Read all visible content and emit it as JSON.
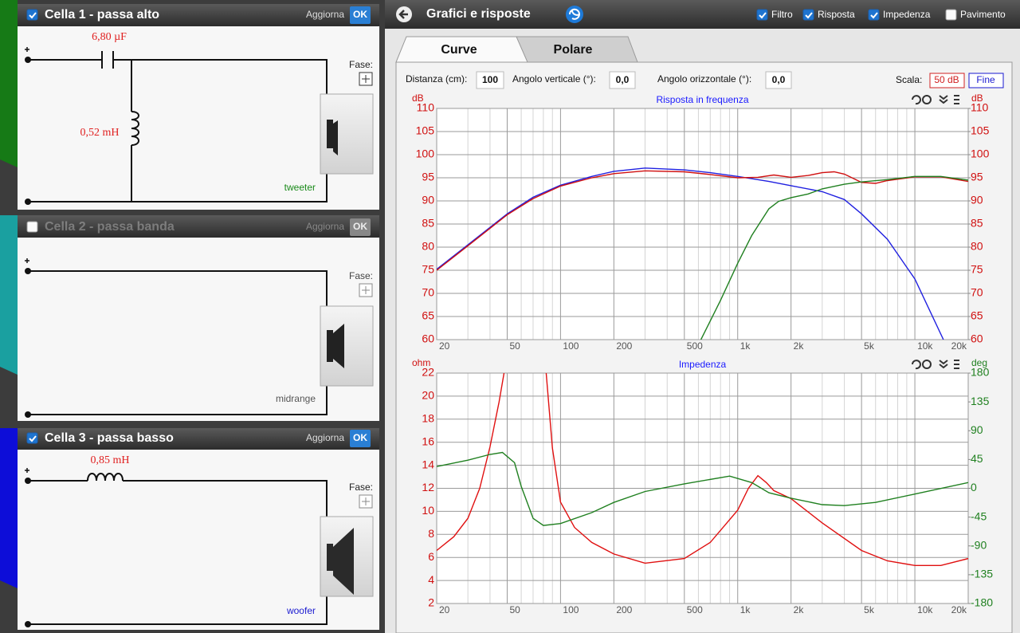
{
  "left_panel": {
    "cells": [
      {
        "title": "Cella 1 - passa alto",
        "checked": true,
        "update": "Aggiorna",
        "ok": "OK",
        "components": [
          "6,80 µF",
          "0,52 mH"
        ],
        "phase": "Fase:",
        "driver": "tweeter"
      },
      {
        "title": "Cella 2 - passa banda",
        "checked": false,
        "update": "Aggiorna",
        "ok": "OK",
        "phase": "Fase:",
        "driver": "midrange"
      },
      {
        "title": "Cella 3 - passa basso",
        "checked": true,
        "update": "Aggiorna",
        "ok": "OK",
        "components": [
          "0,85 mH"
        ],
        "phase": "Fase:",
        "driver": "woofer"
      }
    ]
  },
  "header": {
    "title": "Grafici e risposte",
    "toggles": [
      {
        "label": "Filtro",
        "checked": true
      },
      {
        "label": "Risposta",
        "checked": true
      },
      {
        "label": "Impedenza",
        "checked": true
      },
      {
        "label": "Pavimento",
        "checked": false
      }
    ]
  },
  "tabs": [
    "Curve",
    "Polare"
  ],
  "controls": {
    "distance_label": "Distanza (cm):",
    "distance": "100",
    "vertical_label": "Angolo verticale (°):",
    "vertical": "0,0",
    "horizontal_label": "Angolo orizzontale (°):",
    "horizontal": "0,0",
    "scale_label": "Scala:",
    "scale_db": "50 dB",
    "scale_fine": "Fine"
  },
  "chart_data": [
    {
      "type": "line",
      "title": "Risposta in frequenza",
      "title_color": "#1a1aff",
      "log_x": true,
      "ylabel": "dB",
      "y2label": "dB",
      "ytick_color": "#d01010",
      "y2tick_color": "#d01010",
      "xlim": [
        20,
        20000
      ],
      "xticks": [
        20,
        50,
        100,
        200,
        500,
        {
          "value": 1000,
          "label": "1k"
        },
        {
          "value": 2000,
          "label": "2k"
        },
        {
          "value": 5000,
          "label": "5k"
        },
        {
          "value": 10000,
          "label": "10k"
        },
        {
          "value": 20000,
          "label": "20k"
        }
      ],
      "xticks_minor": [
        30,
        40,
        60,
        70,
        80,
        90,
        300,
        400,
        600,
        700,
        800,
        900,
        3000,
        4000,
        6000,
        7000,
        8000,
        9000
      ],
      "ylim": [
        60,
        110
      ],
      "yticks": [
        60,
        65,
        70,
        75,
        80,
        85,
        90,
        95,
        100,
        105,
        110
      ],
      "y2lim": [
        60,
        110
      ],
      "y2ticks": [
        60,
        65,
        70,
        75,
        80,
        85,
        90,
        95,
        100,
        105,
        110
      ],
      "series": [
        {
          "color": "#2020e0",
          "x": [
            20,
            30,
            50,
            70,
            100,
            150,
            200,
            300,
            500,
            700,
            1000,
            1500,
            2000,
            3000,
            4000,
            5000,
            7000,
            10000,
            14500
          ],
          "values": [
            75.2,
            80.5,
            87.2,
            90.8,
            93.4,
            95.3,
            96.4,
            97.1,
            96.7,
            96.1,
            95.3,
            94.2,
            93.3,
            92,
            90.3,
            87.2,
            81.7,
            73.1,
            60
          ]
        },
        {
          "color": "#d01010",
          "x": [
            20,
            30,
            50,
            70,
            100,
            150,
            200,
            300,
            500,
            700,
            1000,
            1300,
            1600,
            2000,
            2500,
            3000,
            3500,
            4000,
            5000,
            6000,
            7000,
            10000,
            14000,
            20000
          ],
          "values": [
            75,
            80.3,
            87,
            90.5,
            93.2,
            95,
            95.9,
            96.5,
            96.3,
            95.7,
            95,
            95.1,
            95.6,
            95.1,
            95.5,
            96.1,
            96.3,
            95.8,
            94,
            93.8,
            94.4,
            95.2,
            95.2,
            94.2
          ]
        },
        {
          "color": "#208020",
          "x": [
            620,
            800,
            1000,
            1200,
            1500,
            1700,
            2000,
            2500,
            3000,
            4000,
            5000,
            7000,
            10000,
            14000,
            20000
          ],
          "values": [
            60,
            68.5,
            76.5,
            82.5,
            88.3,
            89.9,
            90.7,
            91.5,
            92.6,
            93.6,
            94.1,
            94.6,
            95.3,
            95.3,
            94.5
          ]
        }
      ]
    },
    {
      "type": "line",
      "title": "Impedenza",
      "title_color": "#1a1aff",
      "log_x": true,
      "ylabel": "ohm",
      "y2label": "deg",
      "ytick_color": "#d01010",
      "y2tick_color": "#208020",
      "xlim": [
        20,
        20000
      ],
      "xticks": [
        20,
        50,
        100,
        200,
        500,
        {
          "value": 1000,
          "label": "1k"
        },
        {
          "value": 2000,
          "label": "2k"
        },
        {
          "value": 5000,
          "label": "5k"
        },
        {
          "value": 10000,
          "label": "10k"
        },
        {
          "value": 20000,
          "label": "20k"
        }
      ],
      "xticks_minor": [
        30,
        40,
        60,
        70,
        80,
        90,
        300,
        400,
        600,
        700,
        800,
        900,
        3000,
        4000,
        6000,
        7000,
        8000,
        9000
      ],
      "ylim": [
        2,
        22
      ],
      "yticks": [
        2,
        4,
        6,
        8,
        10,
        12,
        14,
        16,
        18,
        20,
        22
      ],
      "y2lim": [
        -180,
        180
      ],
      "y2ticks": [
        -180,
        -135,
        -90,
        -45,
        0,
        45,
        90,
        135,
        180
      ],
      "series": [
        {
          "color": "#e01010",
          "x": [
            20,
            25,
            30,
            35,
            40,
            45,
            48,
            60,
            83,
            90,
            100,
            120,
            150,
            200,
            300,
            500,
            700,
            1000,
            1150,
            1300,
            1450,
            1600,
            2000,
            3000,
            5000,
            7000,
            10000,
            14000,
            20000
          ],
          "values": [
            6.6,
            7.8,
            9.4,
            12,
            15.6,
            19.5,
            22,
            null,
            22,
            15.5,
            10.8,
            8.6,
            7.3,
            6.3,
            5.5,
            5.9,
            7.3,
            10.1,
            12,
            13.1,
            12.5,
            11.8,
            11.1,
            9,
            6.6,
            5.7,
            5.3,
            5.3,
            5.9
          ]
        },
        {
          "color": "#208020",
          "axis": "y2",
          "x": [
            20,
            30,
            40,
            47,
            55,
            60,
            70,
            80,
            100,
            150,
            200,
            300,
            500,
            900,
            1200,
            1500,
            2000,
            3000,
            4000,
            6000,
            10000,
            20000
          ],
          "values": [
            34,
            44,
            53,
            56,
            40,
            3,
            -47,
            -58,
            -55,
            -38,
            -22,
            -5,
            7,
            19,
            9,
            -7,
            -15.5,
            -25.5,
            -27,
            -22,
            -9,
            9
          ]
        }
      ]
    }
  ]
}
